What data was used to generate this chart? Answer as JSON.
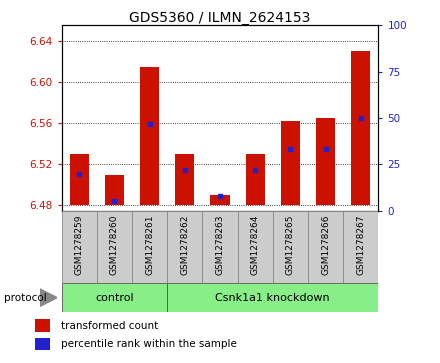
{
  "title": "GDS5360 / ILMN_2624153",
  "samples": [
    "GSM1278259",
    "GSM1278260",
    "GSM1278261",
    "GSM1278262",
    "GSM1278263",
    "GSM1278264",
    "GSM1278265",
    "GSM1278266",
    "GSM1278267"
  ],
  "transformed_counts": [
    6.53,
    6.51,
    6.615,
    6.53,
    6.49,
    6.53,
    6.562,
    6.565,
    6.63
  ],
  "percentile_ranks": [
    20,
    5,
    47,
    22,
    8,
    22,
    33,
    33,
    50
  ],
  "ylim_left": [
    6.475,
    6.655
  ],
  "ylim_right": [
    0,
    100
  ],
  "yticks_left": [
    6.48,
    6.52,
    6.56,
    6.6,
    6.64
  ],
  "yticks_right": [
    0,
    25,
    50,
    75,
    100
  ],
  "bar_color": "#cc1100",
  "percentile_color": "#2222cc",
  "plot_bg_color": "#ffffff",
  "control_samples": 3,
  "group_labels": [
    "control",
    "Csnk1a1 knockdown"
  ],
  "group_color": "#88ee88",
  "group_border_color": "#555555",
  "legend_items": [
    "transformed count",
    "percentile rank within the sample"
  ],
  "bar_width": 0.55,
  "base_value": 6.48,
  "xtick_bg_color": "#cccccc",
  "xtick_border_color": "#888888"
}
